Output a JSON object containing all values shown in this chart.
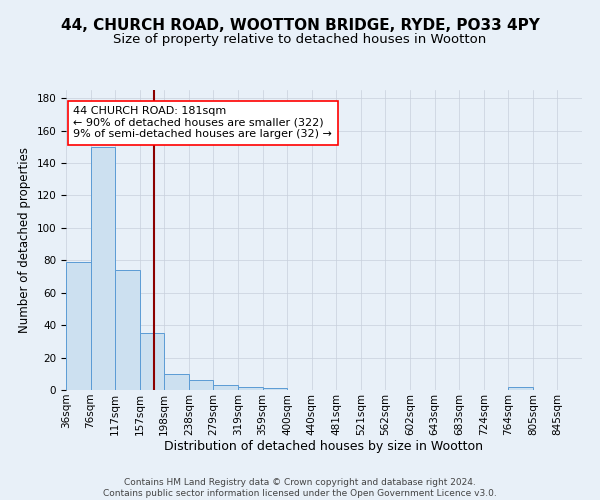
{
  "title": "44, CHURCH ROAD, WOOTTON BRIDGE, RYDE, PO33 4PY",
  "subtitle": "Size of property relative to detached houses in Wootton",
  "xlabel": "Distribution of detached houses by size in Wootton",
  "ylabel": "Number of detached properties",
  "bar_labels": [
    "36sqm",
    "76sqm",
    "117sqm",
    "157sqm",
    "198sqm",
    "238sqm",
    "279sqm",
    "319sqm",
    "359sqm",
    "400sqm",
    "440sqm",
    "481sqm",
    "521sqm",
    "562sqm",
    "602sqm",
    "643sqm",
    "683sqm",
    "724sqm",
    "764sqm",
    "805sqm",
    "845sqm"
  ],
  "bar_values": [
    79,
    150,
    74,
    35,
    10,
    6,
    3,
    2,
    1,
    0,
    0,
    0,
    0,
    0,
    0,
    0,
    0,
    0,
    2,
    0,
    0
  ],
  "bar_color": "#cce0f0",
  "bar_edge_color": "#5b9bd5",
  "property_line_color": "#8b0000",
  "annotation_text": "44 CHURCH ROAD: 181sqm",
  "annotation_line2": "← 90% of detached houses are smaller (322)",
  "annotation_line3": "9% of semi-detached houses are larger (32) →",
  "annotation_box_color": "white",
  "annotation_box_edge_color": "red",
  "ylim": [
    0,
    185
  ],
  "yticks": [
    0,
    20,
    40,
    60,
    80,
    100,
    120,
    140,
    160,
    180
  ],
  "background_color": "#e8f0f8",
  "grid_color": "#c8d0dc",
  "footer_text": "Contains HM Land Registry data © Crown copyright and database right 2024.\nContains public sector information licensed under the Open Government Licence v3.0.",
  "title_fontsize": 11,
  "subtitle_fontsize": 9.5,
  "xlabel_fontsize": 9,
  "ylabel_fontsize": 8.5,
  "tick_fontsize": 7.5,
  "annotation_fontsize": 8,
  "footer_fontsize": 6.5
}
